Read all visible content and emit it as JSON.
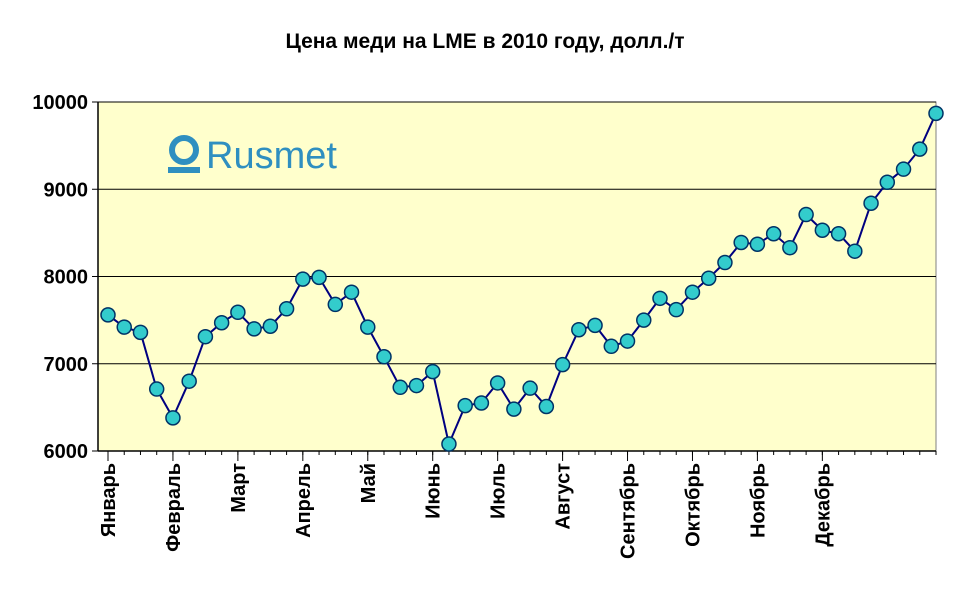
{
  "chart_data": {
    "type": "line",
    "title": "Цена меди на LME в 2010 году, долл./т",
    "xlabel": "",
    "ylabel": "",
    "ylim": [
      6000,
      10000
    ],
    "yticks": [
      6000,
      7000,
      8000,
      9000,
      10000
    ],
    "grid": true,
    "legend": "none",
    "month_labels": [
      "Январь",
      "Февраль",
      "Март",
      "Апрель",
      "Май",
      "Июнь",
      "Июль",
      "Август",
      "Сентябрь",
      "Октябрь",
      "Ноябрь",
      "Декабрь"
    ],
    "month_label_at_point": [
      0,
      4,
      8,
      12,
      16,
      20,
      24,
      28,
      32,
      36,
      40,
      44
    ],
    "series": [
      {
        "values": [
          7560,
          7420,
          7360,
          6710,
          6380,
          6800,
          7310,
          7470,
          7590,
          7400,
          7430,
          7630,
          7970,
          7990,
          7680,
          7820,
          7420,
          7080,
          6730,
          6750,
          6910,
          6080,
          6520,
          6550,
          6780,
          6480,
          6720,
          6510,
          6990,
          7390,
          7440,
          7200,
          7260,
          7500,
          7750,
          7620,
          7820,
          7980,
          8160,
          8390,
          8370,
          8490,
          8330,
          8710,
          8530,
          8490,
          8290,
          8840,
          9080,
          9230,
          9460,
          9870
        ]
      }
    ],
    "colors": {
      "plot_background": "#ffffcc",
      "line": "#000080",
      "marker_fill": "#33cccc",
      "marker_stroke": "#003366",
      "grid": "#000000"
    }
  },
  "logo": {
    "text": "Rusmet",
    "color": "#2f8fc0"
  }
}
